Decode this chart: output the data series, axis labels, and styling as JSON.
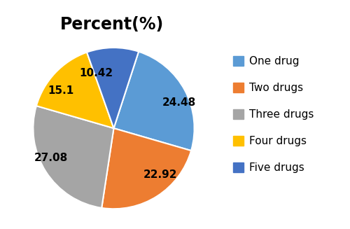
{
  "title": "Percent(%)",
  "title_fontsize": 17,
  "title_fontweight": "bold",
  "slices": [
    24.48,
    22.92,
    27.08,
    15.1,
    10.42
  ],
  "labels": [
    "24.48",
    "22.92",
    "27.08",
    "15.1",
    "10.42"
  ],
  "colors": [
    "#5B9BD5",
    "#ED7D31",
    "#A5A5A5",
    "#FFC000",
    "#4472C4"
  ],
  "legend_labels": [
    "One drug",
    "Two drugs",
    "Three drugs",
    "Four drugs",
    "Five drugs"
  ],
  "legend_colors": [
    "#5B9BD5",
    "#ED7D31",
    "#A5A5A5",
    "#FFC000",
    "#4472C4"
  ],
  "startangle": 72,
  "label_fontsize": 11,
  "legend_fontsize": 11,
  "background_color": "#ffffff"
}
